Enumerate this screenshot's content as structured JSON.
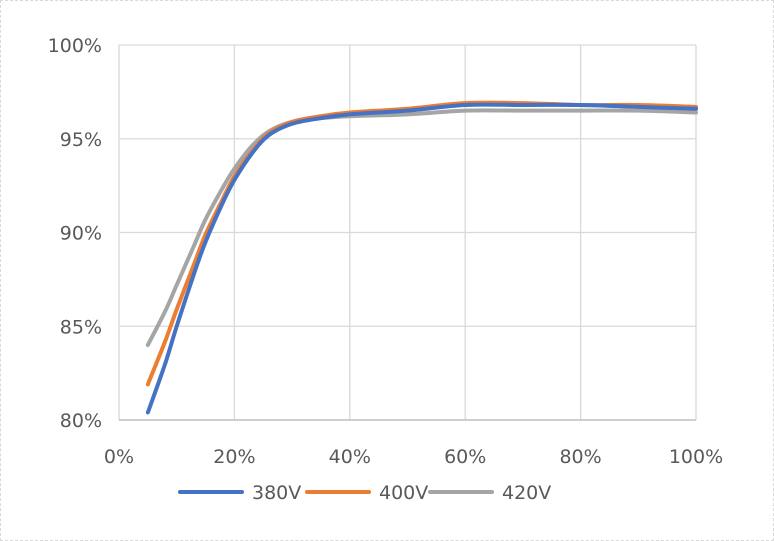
{
  "chart_data": {
    "type": "line",
    "title": "",
    "xlabel": "",
    "ylabel": "",
    "xlim": [
      0,
      100
    ],
    "ylim": [
      80,
      100
    ],
    "x_ticks": [
      0,
      20,
      40,
      60,
      80,
      100
    ],
    "x_tick_labels": [
      "0%",
      "20%",
      "40%",
      "60%",
      "80%",
      "100%"
    ],
    "y_ticks": [
      80,
      85,
      90,
      95,
      100
    ],
    "y_tick_labels": [
      "80%",
      "85%",
      "90%",
      "95%",
      "100%"
    ],
    "grid": true,
    "legend_position": "bottom",
    "series": [
      {
        "name": "380V",
        "color": "#4472c4",
        "x": [
          5,
          8,
          10,
          13,
          15,
          18,
          20,
          23,
          26,
          30,
          35,
          40,
          50,
          60,
          70,
          80,
          90,
          100
        ],
        "y": [
          80.4,
          83.0,
          85.0,
          87.8,
          89.5,
          91.6,
          92.8,
          94.2,
          95.2,
          95.8,
          96.1,
          96.3,
          96.5,
          96.8,
          96.8,
          96.8,
          96.7,
          96.6
        ]
      },
      {
        "name": "400V",
        "color": "#ed7d31",
        "x": [
          5,
          8,
          10,
          13,
          15,
          18,
          20,
          23,
          26,
          30,
          35,
          40,
          50,
          60,
          70,
          80,
          90,
          100
        ],
        "y": [
          81.9,
          84.2,
          85.9,
          88.3,
          89.9,
          91.8,
          93.0,
          94.3,
          95.3,
          95.9,
          96.2,
          96.4,
          96.6,
          96.9,
          96.9,
          96.8,
          96.8,
          96.7
        ]
      },
      {
        "name": "420V",
        "color": "#a5a5a5",
        "x": [
          5,
          8,
          10,
          13,
          15,
          18,
          20,
          23,
          26,
          30,
          35,
          40,
          50,
          60,
          70,
          80,
          90,
          100
        ],
        "y": [
          84.0,
          85.8,
          87.2,
          89.3,
          90.7,
          92.4,
          93.4,
          94.6,
          95.4,
          95.9,
          96.1,
          96.2,
          96.3,
          96.5,
          96.5,
          96.5,
          96.5,
          96.4
        ]
      }
    ]
  }
}
